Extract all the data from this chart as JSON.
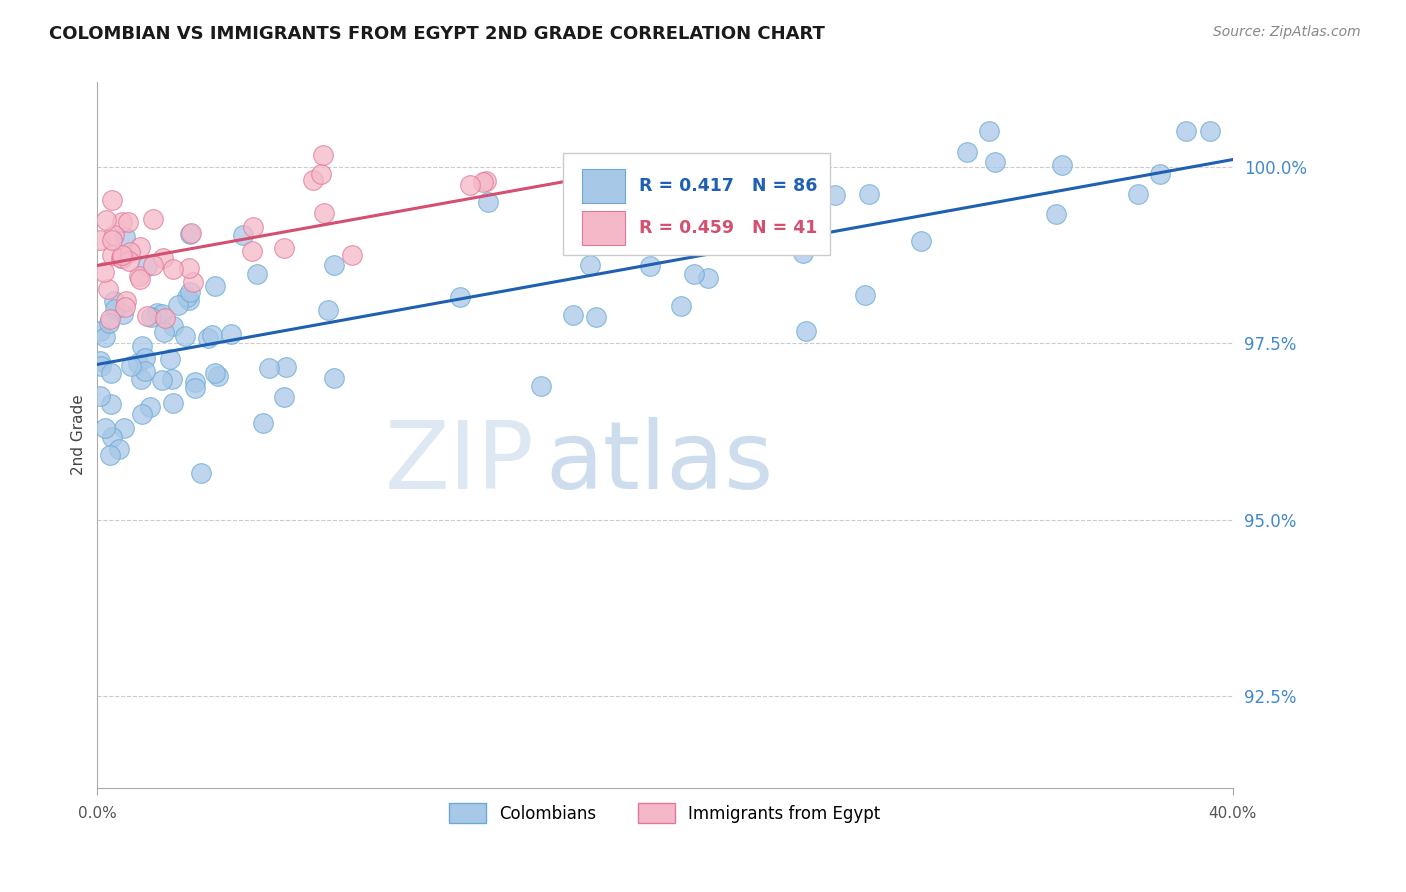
{
  "title": "COLOMBIAN VS IMMIGRANTS FROM EGYPT 2ND GRADE CORRELATION CHART",
  "source": "Source: ZipAtlas.com",
  "ylabel": "2nd Grade",
  "ytick_vals": [
    92.5,
    95.0,
    97.5,
    100.0
  ],
  "xlim": [
    0.0,
    40.0
  ],
  "ylim": [
    91.2,
    101.2
  ],
  "blue_color": "#a8c8e8",
  "blue_edge_color": "#6aaad4",
  "blue_line_color": "#2060b0",
  "pink_color": "#f5b8c8",
  "pink_edge_color": "#e07898",
  "pink_line_color": "#d45070",
  "legend_R_blue": "R = 0.417",
  "legend_N_blue": "N = 86",
  "legend_R_pink": "R = 0.459",
  "legend_N_pink": "N = 41",
  "blue_line_x": [
    0.0,
    40.0
  ],
  "blue_line_y": [
    97.2,
    100.1
  ],
  "pink_line_x": [
    0.0,
    18.0
  ],
  "pink_line_y": [
    98.6,
    99.9
  ],
  "watermark_zip": "ZIP",
  "watermark_atlas": "atlas",
  "title_fontsize": 13,
  "source_fontsize": 10,
  "ytick_fontsize": 12,
  "ylabel_fontsize": 11
}
